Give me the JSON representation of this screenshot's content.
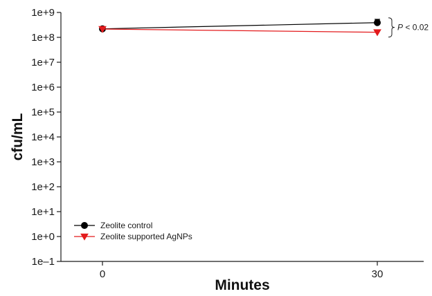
{
  "chart_data": {
    "type": "line",
    "xlabel": "Minutes",
    "ylabel": "cfu/mL",
    "yscale": "log",
    "ylim_exponents": [
      -1,
      9
    ],
    "xlim": [
      -10,
      35
    ],
    "x_ticks": [
      0,
      30
    ],
    "y_tick_labels": [
      "1e–1",
      "1e+0",
      "1e+1",
      "1e+2",
      "1e+3",
      "1e+4",
      "1e+5",
      "1e+6",
      "1e+7",
      "1e+8",
      "1e+9"
    ],
    "x": [
      0,
      30
    ],
    "series": [
      {
        "name": "Zeolite control",
        "color": "#000000",
        "marker": "circle",
        "values": [
          220000000,
          390000000
        ],
        "error_upper": [
          null,
          530000000
        ]
      },
      {
        "name": "Zeolite supported AgNPs",
        "color": "#e31a1c",
        "marker": "triangle-down",
        "values": [
          215000000,
          160000000
        ],
        "error_upper": [
          null,
          null
        ]
      }
    ],
    "annotation": {
      "p_symbol": "P",
      "p_rest": " < 0.02"
    },
    "legend_position": "bottom-left",
    "grid": false
  }
}
